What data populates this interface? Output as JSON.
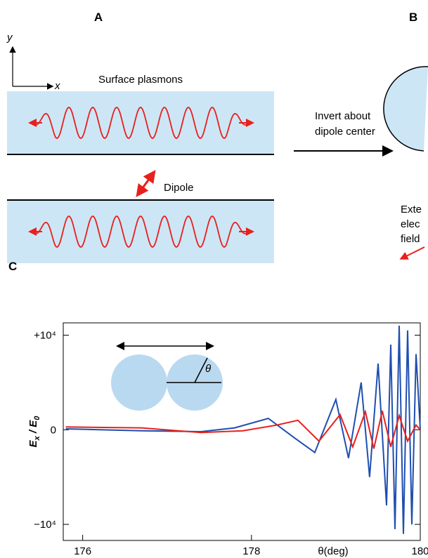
{
  "panel_a": {
    "label": "A",
    "y_axis": "y",
    "x_axis": "x",
    "surface_label": "Surface plasmons",
    "dipole_label": "Dipole"
  },
  "panel_b": {
    "label": "B",
    "arrow_text": [
      "Invert about",
      "dipole center"
    ],
    "field_text": [
      "Exte",
      "elec",
      "field"
    ]
  },
  "panel_c": {
    "label": "C",
    "inset_angle": "θ"
  },
  "chart_data": {
    "type": "line",
    "xlabel": "θ(deg)",
    "ylabel": [
      "E",
      "x",
      " / ",
      "E",
      "0"
    ],
    "xlim": [
      175.77,
      180
    ],
    "xticks": [
      176,
      178,
      180
    ],
    "ylim": [
      -11700,
      11300
    ],
    "yticks": [
      {
        "value": 10000,
        "label": "+10⁴"
      },
      0,
      {
        "value": -10000,
        "label": "−10⁴"
      }
    ],
    "series": [
      {
        "name": "blue",
        "color": "#1f4fb0",
        "x": [
          175.8,
          176.7,
          177.4,
          177.8,
          178.2,
          178.5,
          178.75,
          179.0,
          179.15,
          179.3,
          179.4,
          179.5,
          179.6,
          179.65,
          179.7,
          179.75,
          179.8,
          179.85,
          179.9,
          179.95,
          180
        ],
        "values": [
          100,
          -100,
          -200,
          200,
          1200,
          -800,
          -2400,
          3200,
          -3000,
          5000,
          -5000,
          7000,
          -8000,
          9000,
          -10500,
          11000,
          -11000,
          10500,
          -10000,
          8000,
          0
        ]
      },
      {
        "name": "red",
        "color": "#e8201c",
        "x": [
          175.8,
          176.7,
          177.4,
          177.9,
          178.3,
          178.55,
          178.8,
          179.05,
          179.2,
          179.35,
          179.45,
          179.55,
          179.65,
          179.75,
          179.85,
          179.95,
          180
        ],
        "values": [
          300,
          200,
          -300,
          -100,
          500,
          1000,
          -1200,
          1600,
          -1800,
          1900,
          -2000,
          2000,
          -1800,
          1500,
          -1200,
          500,
          0
        ]
      }
    ]
  }
}
